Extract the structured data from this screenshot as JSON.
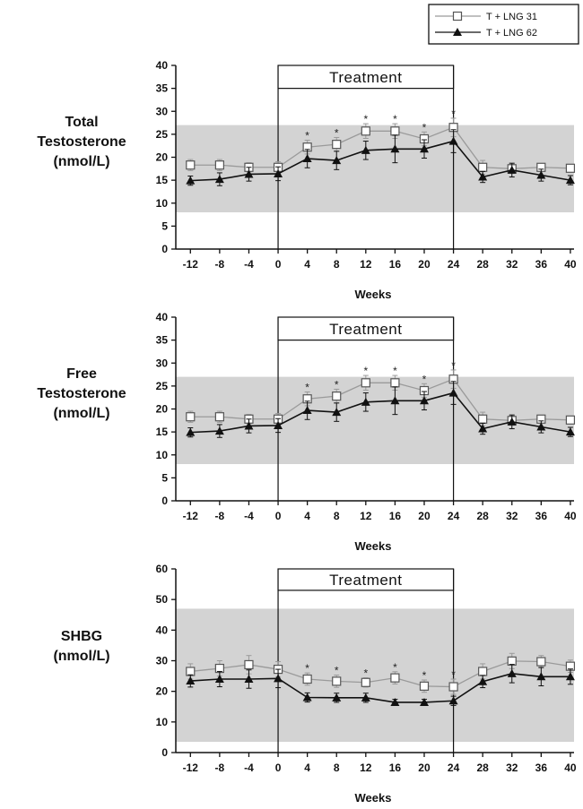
{
  "legend": {
    "entries": [
      {
        "label": "T + LNG 31",
        "marker": "open-square"
      },
      {
        "label": "T + LNG 62",
        "marker": "filled-triangle"
      }
    ]
  },
  "colors": {
    "reference_band": "#d3d3d3",
    "series_31_line": "#9a9a9a",
    "series_62_line": "#111111",
    "axis": "#111111"
  },
  "chart_data": [
    {
      "type": "line",
      "title": "",
      "ylabel": "Total Testosterone (nmol/L)",
      "ylabel_lines": [
        "Total",
        "Testosterone",
        "(nmol/L)"
      ],
      "xlabel": "Weeks",
      "x": [
        -12,
        -8,
        -4,
        0,
        4,
        8,
        12,
        16,
        20,
        24,
        28,
        32,
        36,
        40
      ],
      "xlim": [
        -14,
        40.5
      ],
      "ylim": [
        0,
        40
      ],
      "yticks": [
        0,
        5,
        10,
        15,
        20,
        25,
        30,
        35,
        40
      ],
      "reference_band": [
        8,
        27
      ],
      "treatment": {
        "label": "Treatment",
        "start": 0,
        "end": 24,
        "box_y": [
          35,
          40
        ]
      },
      "series": [
        {
          "name": "T + LNG 31",
          "marker": "open-square",
          "values": [
            18.3,
            18.3,
            17.8,
            17.8,
            22.2,
            22.8,
            25.7,
            25.7,
            24,
            26.5,
            17.8,
            17.5,
            17.8,
            17.6
          ],
          "errors": [
            1.2,
            1.2,
            1.0,
            1.2,
            1.5,
            1.5,
            1.6,
            1.6,
            1.5,
            2.0,
            1.5,
            1.0,
            0.8,
            0.8
          ]
        },
        {
          "name": "T + LNG 62",
          "marker": "filled-triangle",
          "values": [
            14.9,
            15.2,
            16.3,
            16.4,
            19.7,
            19.3,
            21.5,
            21.8,
            21.8,
            23.5,
            15.7,
            17.2,
            16.1,
            15.0
          ],
          "errors": [
            1.0,
            1.4,
            1.5,
            1.5,
            2.0,
            2.0,
            2.0,
            3.0,
            2.0,
            2.5,
            1.2,
            1.5,
            1.3,
            1.0
          ]
        }
      ],
      "annotations": [
        {
          "x": 4,
          "text": "*"
        },
        {
          "x": 8,
          "text": "*"
        },
        {
          "x": 12,
          "text": "*"
        },
        {
          "x": 16,
          "text": "*"
        },
        {
          "x": 20,
          "text": "*"
        },
        {
          "x": 24,
          "text": "*"
        }
      ]
    },
    {
      "type": "line",
      "title": "",
      "ylabel": "Free Testosterone (nmol/L)",
      "ylabel_lines": [
        "Free",
        "Testosterone",
        "(nmol/L)"
      ],
      "xlabel": "Weeks",
      "x": [
        -12,
        -8,
        -4,
        0,
        4,
        8,
        12,
        16,
        20,
        24,
        28,
        32,
        36,
        40
      ],
      "xlim": [
        -14,
        40.5
      ],
      "ylim": [
        0,
        40
      ],
      "yticks": [
        0,
        5,
        10,
        15,
        20,
        25,
        30,
        35,
        40
      ],
      "reference_band": [
        8,
        27
      ],
      "treatment": {
        "label": "Treatment",
        "start": 0,
        "end": 24,
        "box_y": [
          35,
          40
        ]
      },
      "series": [
        {
          "name": "T + LNG 31",
          "marker": "open-square",
          "values": [
            18.3,
            18.3,
            17.8,
            17.8,
            22.2,
            22.8,
            25.7,
            25.7,
            24,
            26.5,
            17.8,
            17.5,
            17.8,
            17.6
          ],
          "errors": [
            1.2,
            1.2,
            1.0,
            1.2,
            1.5,
            1.5,
            1.6,
            1.6,
            1.5,
            2.0,
            1.5,
            1.0,
            0.8,
            0.8
          ]
        },
        {
          "name": "T + LNG 62",
          "marker": "filled-triangle",
          "values": [
            14.9,
            15.2,
            16.3,
            16.4,
            19.7,
            19.3,
            21.5,
            21.8,
            21.8,
            23.5,
            15.7,
            17.2,
            16.1,
            15.0
          ],
          "errors": [
            1.0,
            1.4,
            1.5,
            1.5,
            2.0,
            2.0,
            2.0,
            3.0,
            2.0,
            2.5,
            1.2,
            1.5,
            1.3,
            1.0
          ]
        }
      ],
      "annotations": [
        {
          "x": 4,
          "text": "*"
        },
        {
          "x": 8,
          "text": "*"
        },
        {
          "x": 12,
          "text": "*"
        },
        {
          "x": 16,
          "text": "*"
        },
        {
          "x": 20,
          "text": "*"
        },
        {
          "x": 24,
          "text": "*"
        }
      ]
    },
    {
      "type": "line",
      "title": "",
      "ylabel": "SHBG (nmol/L)",
      "ylabel_lines": [
        "SHBG",
        "(nmol/L)"
      ],
      "xlabel": "Weeks",
      "x": [
        -12,
        -8,
        -4,
        0,
        4,
        8,
        12,
        16,
        20,
        24,
        28,
        32,
        36,
        40
      ],
      "xlim": [
        -14,
        40.5
      ],
      "ylim": [
        0,
        60
      ],
      "yticks": [
        0,
        10,
        20,
        30,
        40,
        50,
        60
      ],
      "reference_band": [
        3.5,
        47
      ],
      "treatment": {
        "label": "Treatment",
        "start": 0,
        "end": 24,
        "box_y": [
          53,
          60
        ]
      },
      "series": [
        {
          "name": "T + LNG 31",
          "marker": "open-square",
          "values": [
            26.5,
            27.5,
            28.7,
            27.2,
            24,
            23.3,
            22.9,
            24.4,
            21.7,
            21.5,
            26.5,
            29.9,
            29.7,
            28.2
          ],
          "errors": [
            2.5,
            2.5,
            3.0,
            2.5,
            2.0,
            2.0,
            1.5,
            2.0,
            2.0,
            2.5,
            2.5,
            2.5,
            2.0,
            2.0
          ]
        },
        {
          "name": "T + LNG 62",
          "marker": "filled-triangle",
          "values": [
            23.4,
            24.0,
            24.0,
            24.2,
            18.0,
            17.9,
            17.9,
            16.4,
            16.4,
            16.9,
            23.2,
            25.8,
            24.8,
            24.8
          ],
          "errors": [
            2.0,
            2.5,
            3.0,
            3.0,
            1.5,
            1.5,
            1.5,
            1.0,
            1.0,
            1.5,
            2.0,
            3.0,
            3.0,
            2.5
          ]
        }
      ],
      "annotations": [
        {
          "x": 4,
          "text": "*"
        },
        {
          "x": 8,
          "text": "*"
        },
        {
          "x": 12,
          "text": "*"
        },
        {
          "x": 16,
          "text": "*"
        },
        {
          "x": 20,
          "text": "*"
        },
        {
          "x": 24,
          "text": "*"
        }
      ]
    }
  ]
}
